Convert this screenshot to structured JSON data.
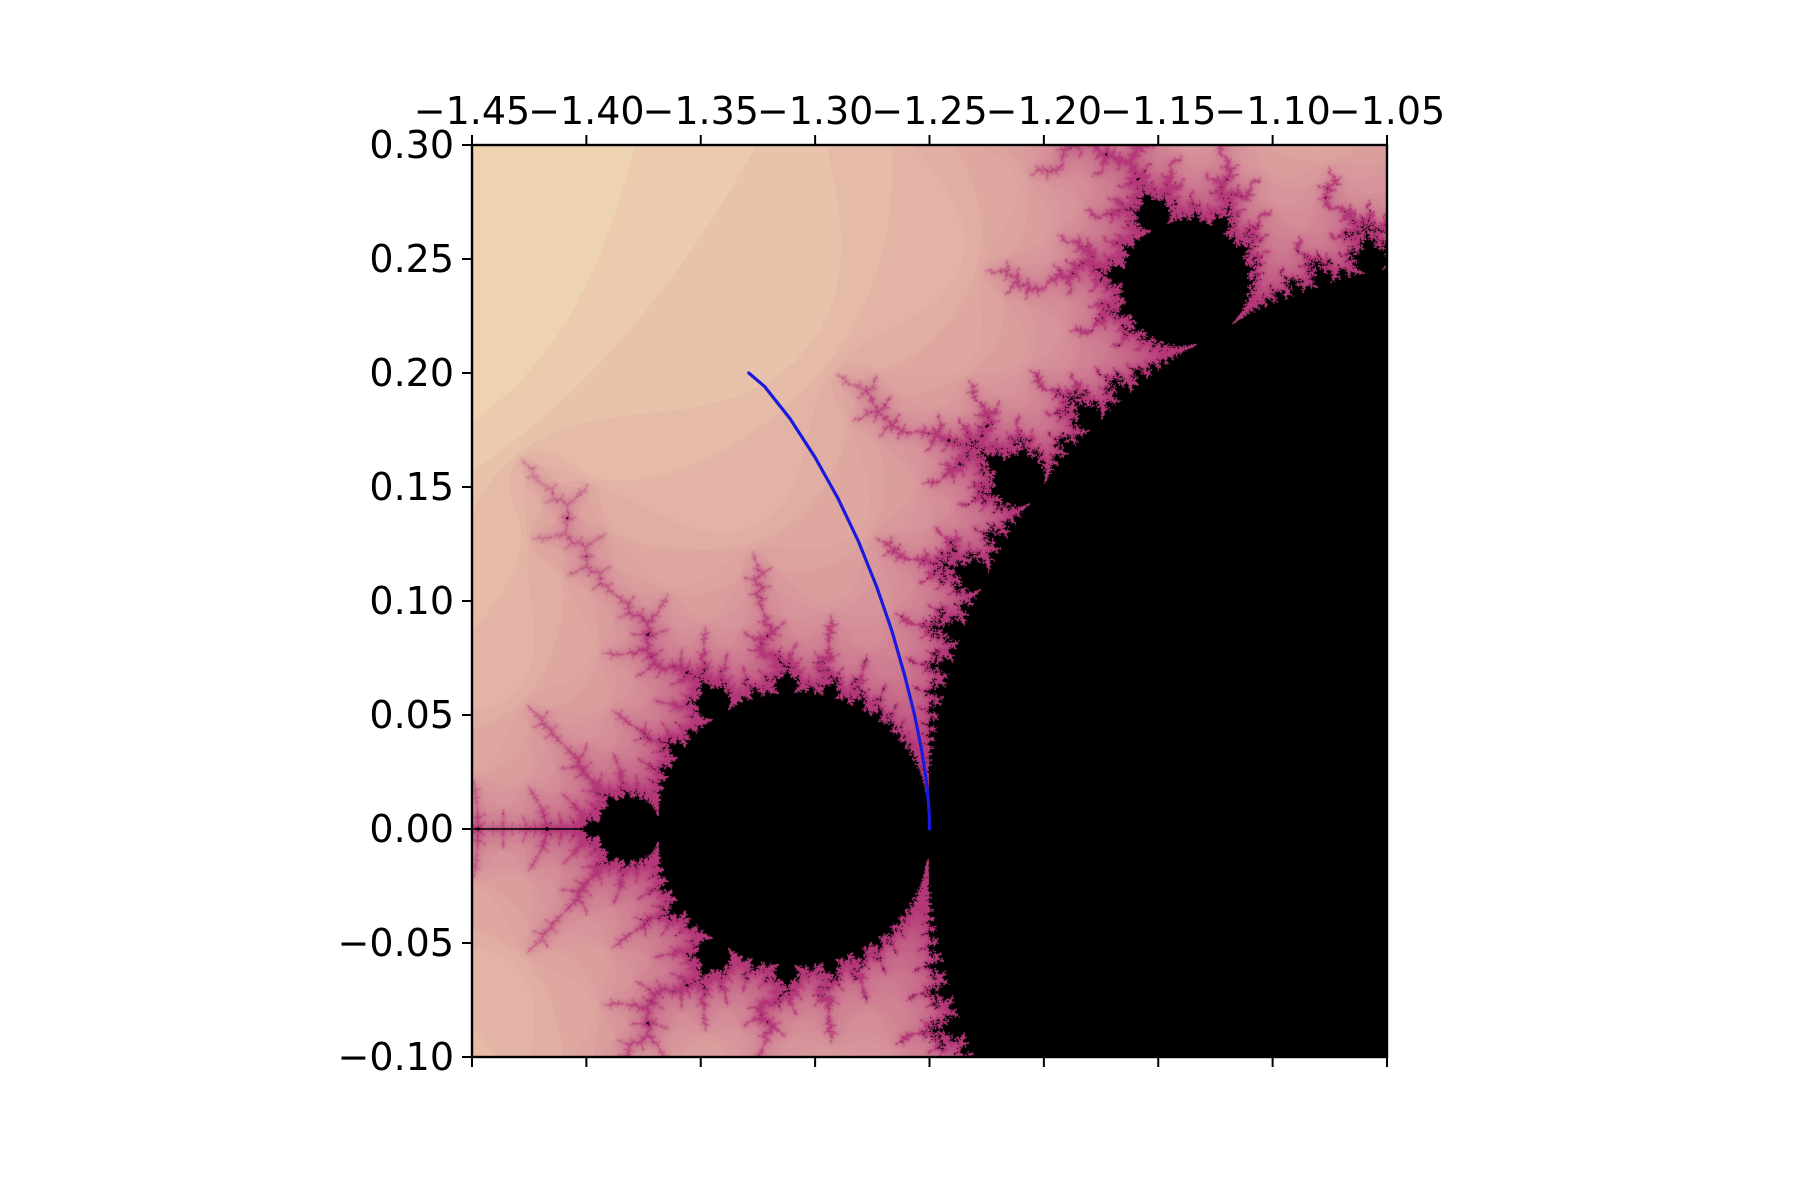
{
  "chart_data": {
    "type": "scatter",
    "title": "",
    "xlabel": "",
    "ylabel": "",
    "xlim": [
      -1.45,
      -1.05
    ],
    "ylim": [
      -0.1,
      0.3
    ],
    "x_ticks": [
      -1.45,
      -1.4,
      -1.35,
      -1.3,
      -1.25,
      -1.2,
      -1.15,
      -1.1,
      -1.05
    ],
    "x_tick_labels": [
      "−1.45",
      "−1.40",
      "−1.35",
      "−1.30",
      "−1.25",
      "−1.20",
      "−1.15",
      "−1.10",
      "−1.05"
    ],
    "y_ticks": [
      0.3,
      0.25,
      0.2,
      0.15,
      0.1,
      0.05,
      0.0,
      -0.05,
      -0.1
    ],
    "y_tick_labels": [
      "0.30",
      "0.25",
      "0.20",
      "0.15",
      "0.10",
      "0.05",
      "0.00",
      "−0.05",
      "−0.10"
    ],
    "x_axis_position": "top",
    "grid": false,
    "background": "Mandelbrot set escape-time image (black interior, pale yellow exterior)",
    "colors": {
      "set_interior": "#000000",
      "exterior": "#fbf7be",
      "boundary": "#e8a27c",
      "curve": "#1a1adc"
    },
    "series": [
      {
        "x": [
          -1.25,
          -1.2501,
          -1.2505,
          -1.2515,
          -1.2535,
          -1.2565,
          -1.261,
          -1.2665,
          -1.273,
          -1.281,
          -1.29,
          -1.3,
          -1.311,
          -1.322,
          -1.329
        ],
        "y": [
          0.0,
          0.006,
          0.012,
          0.022,
          0.035,
          0.05,
          0.068,
          0.087,
          0.106,
          0.126,
          0.145,
          0.163,
          0.18,
          0.194,
          0.2
        ]
      },
      {
        "x": [
          -1.45,
          -1.3955
        ],
        "y": [
          0.0,
          0.0
        ]
      }
    ]
  }
}
